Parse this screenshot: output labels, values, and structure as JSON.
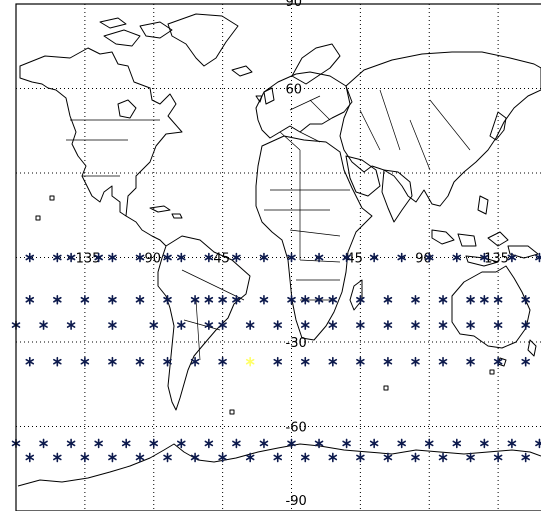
{
  "map": {
    "projection": "cylindrical",
    "gridlines": "dotted",
    "lon_range": [
      -180,
      180
    ],
    "lat_range": [
      -90,
      90
    ],
    "lat_labels": [
      {
        "text": "90",
        "lat": 90,
        "lon": 0
      },
      {
        "text": "60",
        "lat": 60,
        "lon": 0
      },
      {
        "text": "-30",
        "lat": -30,
        "lon": 0
      },
      {
        "text": "-60",
        "lat": -60,
        "lon": 0
      },
      {
        "text": "-90",
        "lat": -90,
        "lon": 0
      }
    ],
    "lon_labels": [
      {
        "text": "-135",
        "lon": -135
      },
      {
        "text": "-90",
        "lon": -90
      },
      {
        "text": "-45",
        "lon": -45
      },
      {
        "text": "45",
        "lon": 45
      },
      {
        "text": "90",
        "lon": 90
      },
      {
        "text": "135",
        "lon": 135
      }
    ],
    "lon_label_lat": 0,
    "colors": {
      "coastline": "#000000",
      "grid": "#000000",
      "markers": "#0d1a4d",
      "highlight": "#ffff66"
    },
    "marker_symbol": "*",
    "marker_rows": [
      {
        "lat": 0,
        "lons": [
          -171,
          -153,
          -144,
          -126,
          -117,
          -99,
          -81,
          -72,
          -54,
          -36,
          -18,
          0,
          18,
          36,
          54,
          72,
          90,
          108,
          126,
          144,
          162,
          171
        ]
      },
      {
        "lat": -15,
        "lons": [
          -171,
          -153,
          -135,
          -117,
          -99,
          -81,
          -63,
          -54,
          -45,
          -36,
          -18,
          0,
          9,
          18,
          27,
          45,
          63,
          81,
          99,
          117,
          126,
          135,
          153,
          171
        ]
      },
      {
        "lat": -24,
        "lons": [
          -180,
          -162,
          -144,
          -117,
          -90,
          -72,
          -54,
          -45,
          -27,
          -9,
          9,
          27,
          45,
          63,
          81,
          99,
          117,
          135,
          153,
          171
        ]
      },
      {
        "lat": -37,
        "lons": [
          -171,
          -153,
          -135,
          -117,
          -99,
          -81,
          -63,
          -45,
          -9,
          9,
          27,
          45,
          63,
          81,
          99,
          117,
          135,
          153,
          171
        ]
      },
      {
        "lat": -66,
        "lons": [
          -180,
          -162,
          -144,
          -126,
          -108,
          -90,
          -72,
          -54,
          -36,
          -18,
          0,
          18,
          36,
          54,
          72,
          90,
          108,
          126,
          144,
          162,
          180
        ]
      },
      {
        "lat": -71,
        "lons": [
          -171,
          -153,
          -135,
          -117,
          -99,
          -81,
          -63,
          -45,
          -27,
          -9,
          9,
          27,
          45,
          63,
          81,
          99,
          117,
          135,
          153,
          171
        ]
      }
    ],
    "highlighted_marker": {
      "lat": -37,
      "lons": [
        -27
      ]
    }
  }
}
